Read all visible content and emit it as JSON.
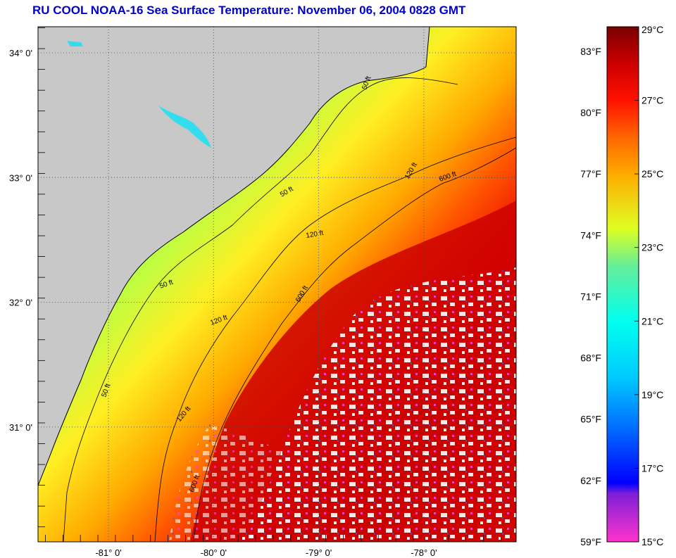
{
  "title": "RU COOL  NOAA-16  Sea Surface Temperature:  November 06, 2004 0828 GMT",
  "map": {
    "lat_labels": [
      {
        "lat": 34,
        "text": "34° 0'"
      },
      {
        "lat": 33,
        "text": "33° 0'"
      },
      {
        "lat": 32,
        "text": "32° 0'"
      },
      {
        "lat": 31,
        "text": "31° 0'"
      }
    ],
    "lon_labels": [
      {
        "lon": -81,
        "text": "-81° 0'"
      },
      {
        "lon": -80,
        "text": "-80° 0'"
      },
      {
        "lon": -79,
        "text": "-79° 0'"
      },
      {
        "lon": -78,
        "text": "-78° 0'"
      }
    ],
    "contour_labels": [
      "50 ft",
      "50 ft",
      "50 ft",
      "50 ft",
      "120 ft",
      "120 ft",
      "120 ft",
      "120 ft",
      "600 ft",
      "600 ft",
      "600 ft"
    ],
    "colors": {
      "land": "#c8c8c8",
      "cloud": "#ffffff",
      "grid": "#444444"
    }
  },
  "colorbar": {
    "fahrenheit_labels": [
      "83°F",
      "80°F",
      "77°F",
      "74°F",
      "71°F",
      "68°F",
      "65°F",
      "62°F",
      "59°F"
    ],
    "fahrenheit_values": [
      83,
      80,
      77,
      74,
      71,
      68,
      65,
      62,
      59
    ],
    "celsius_labels": [
      "29°C",
      "27°C",
      "25°C",
      "23°C",
      "21°C",
      "19°C",
      "17°C",
      "15°C"
    ],
    "celsius_values": [
      29,
      27,
      25,
      23,
      21,
      19,
      17,
      15
    ],
    "range_c": [
      15,
      29
    ],
    "stops": [
      {
        "c": 15,
        "color": "#ff33cc"
      },
      {
        "c": 16.3,
        "color": "#7f1fd9"
      },
      {
        "c": 16.6,
        "color": "#0000ff"
      },
      {
        "c": 18,
        "color": "#0066ff"
      },
      {
        "c": 19.5,
        "color": "#00ccff"
      },
      {
        "c": 21,
        "color": "#00ffee"
      },
      {
        "c": 22.5,
        "color": "#66ee99"
      },
      {
        "c": 23.5,
        "color": "#ddff22"
      },
      {
        "c": 25,
        "color": "#ffaa00"
      },
      {
        "c": 26,
        "color": "#ff6600"
      },
      {
        "c": 27,
        "color": "#ff1100"
      },
      {
        "c": 28,
        "color": "#cc0000"
      },
      {
        "c": 29,
        "color": "#7a0000"
      }
    ]
  }
}
